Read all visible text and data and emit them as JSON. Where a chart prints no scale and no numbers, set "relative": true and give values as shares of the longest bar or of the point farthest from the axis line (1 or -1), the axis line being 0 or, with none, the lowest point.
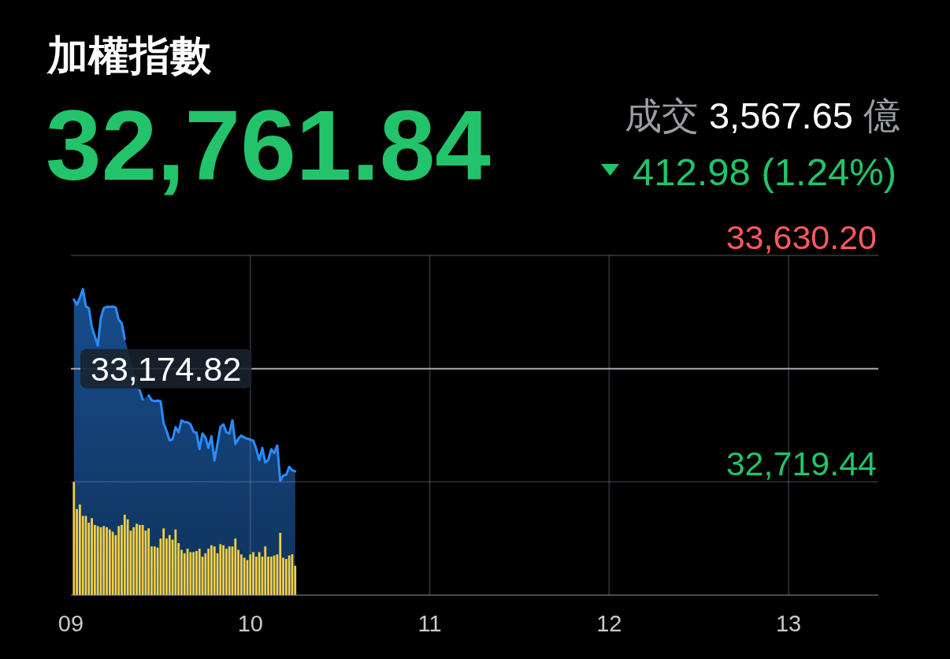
{
  "chart_data": [
    {
      "type": "area",
      "title": "加權指數",
      "subtitle": "32,761.84",
      "annotations": [
        "成交 3,567.65 億",
        "412.98 (1.24%)"
      ],
      "x": [
        9.0167,
        9.0333,
        9.05,
        9.0667,
        9.0833,
        9.1,
        9.1167,
        9.1333,
        9.15,
        9.1667,
        9.1833,
        9.2,
        9.2167,
        9.2333,
        9.25,
        9.2667,
        9.2833,
        9.3,
        9.3167,
        9.3333,
        9.35,
        9.3667,
        9.3833,
        9.4,
        9.4167,
        9.4333,
        9.45,
        9.4667,
        9.4833,
        9.5,
        9.5167,
        9.5333,
        9.55,
        9.5667,
        9.5833,
        9.6,
        9.6167,
        9.6333,
        9.65,
        9.6667,
        9.6833,
        9.7,
        9.7167,
        9.7333,
        9.75,
        9.7667,
        9.7833,
        9.8,
        9.8167,
        9.8333,
        9.85,
        9.8667,
        9.8833,
        9.9,
        9.9167,
        9.9333,
        9.95,
        9.9667,
        9.9833,
        10,
        10.0167,
        10.0333,
        10.05,
        10.0667,
        10.0833,
        10.1,
        10.1167,
        10.1333,
        10.15,
        10.1667,
        10.1833,
        10.2,
        10.2167,
        10.2333,
        10.25
      ],
      "values": [
        33453,
        33432,
        33460,
        33495,
        33426,
        33418,
        33342,
        33305,
        33268,
        33379,
        33418,
        33423,
        33423,
        33424,
        33421,
        33371,
        33358,
        33294,
        null,
        null,
        null,
        null,
        33088,
        33051,
        null,
        33067,
        33048,
        33044,
        33046,
        33044,
        32956,
        32924,
        32887,
        32890,
        32940,
        32919,
        32967,
        32960,
        32959,
        32951,
        32921,
        32917,
        32851,
        32914,
        32898,
        32856,
        32903,
        32805,
        32872,
        32940,
        32951,
        32919,
        32914,
        32967,
        32872,
        32893,
        32906,
        32898,
        32893,
        32890,
        32885,
        32851,
        32808,
        32856,
        32798,
        32808,
        32851,
        32835,
        32866,
        32724,
        32745,
        32748,
        32780,
        32766,
        32762
      ],
      "color": "#2a8cff",
      "xlim": [
        9,
        13.5
      ],
      "xticks": [
        {
          "value": 9,
          "label": "09"
        },
        10,
        11,
        12,
        13
      ],
      "ylim": [
        32264.06,
        33630.2
      ],
      "yticks": [
        {
          "value": 33630.2,
          "label": "33,630.20"
        },
        {
          "value": 32719.44,
          "label": "32,719.44"
        }
      ],
      "ref_lines": [
        {
          "axis": "y",
          "value": 33174.82,
          "label": "33,174.82",
          "color": "#a9aab0"
        }
      ],
      "grid": true
    },
    {
      "type": "bar",
      "relative": true,
      "x": [
        9.0167,
        9.0333,
        9.05,
        9.0667,
        9.0833,
        9.1,
        9.1167,
        9.1333,
        9.15,
        9.1667,
        9.1833,
        9.2,
        9.2167,
        9.2333,
        9.25,
        9.2667,
        9.2833,
        9.3,
        9.3167,
        9.3333,
        9.35,
        9.3667,
        9.3833,
        9.4,
        9.4167,
        9.4333,
        9.45,
        9.4667,
        9.4833,
        9.5,
        9.5167,
        9.5333,
        9.55,
        9.5667,
        9.5833,
        9.6,
        9.6167,
        9.6333,
        9.65,
        9.6667,
        9.6833,
        9.7,
        9.7167,
        9.7333,
        9.75,
        9.7667,
        9.7833,
        9.8,
        9.8167,
        9.8333,
        9.85,
        9.8667,
        9.8833,
        9.9,
        9.9167,
        9.9333,
        9.95,
        9.9667,
        9.9833,
        10,
        10.0167,
        10.0333,
        10.05,
        10.0667,
        10.0833,
        10.1,
        10.1167,
        10.1333,
        10.15,
        10.1667,
        10.1833,
        10.2,
        10.2167,
        10.2333,
        10.25
      ],
      "values": [
        1,
        0.76,
        0.8,
        0.7,
        0.7,
        0.64,
        0.68,
        0.62,
        0.61,
        0.6,
        0.61,
        0.6,
        0.58,
        0.56,
        0.53,
        0.61,
        0.62,
        0.71,
        0.67,
        0.57,
        0.6,
        0.63,
        0.62,
        0.62,
        0.57,
        0.59,
        0.43,
        0.43,
        0.42,
        0.5,
        0.59,
        0.5,
        0.53,
        0.49,
        0.58,
        0.46,
        0.4,
        0.37,
        0.41,
        0.38,
        0.38,
        0.39,
        0.41,
        0.34,
        0.37,
        0.41,
        0.44,
        0.43,
        0.37,
        0.45,
        0.44,
        0.41,
        0.43,
        0.43,
        0.5,
        0.4,
        0.36,
        0.33,
        0.31,
        0.36,
        0.38,
        0.34,
        0.38,
        0.34,
        0.43,
        0.34,
        0.34,
        0.35,
        0.36,
        0.55,
        0.33,
        0.32,
        0.35,
        0.36,
        0.26
      ],
      "color": "#f2cf48",
      "xlim": [
        9,
        13.5
      ]
    }
  ]
}
